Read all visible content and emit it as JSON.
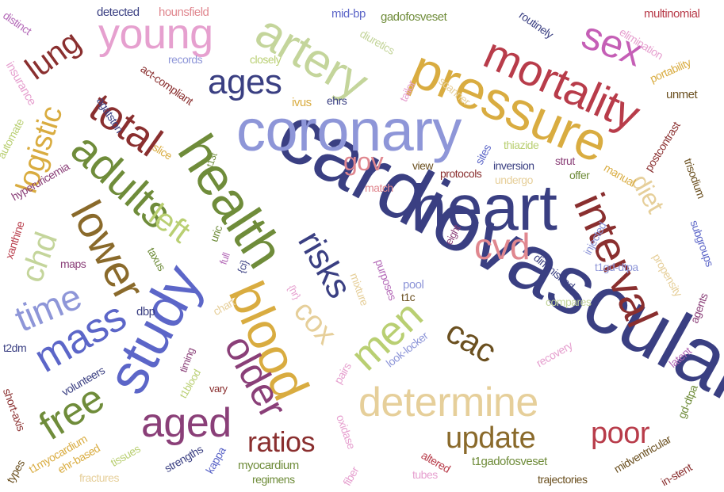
{
  "colors": {
    "navy": "#3a3f82",
    "periwinkle": "#8e96d8",
    "blue": "#5c66c8",
    "olive": "#6f8c3a",
    "lime": "#b9cf72",
    "sage": "#c4d59b",
    "gold": "#d9ac40",
    "sand": "#e6cf9a",
    "brown": "#8a6a2b",
    "darkbrown": "#6b5020",
    "maroon": "#8a2f2f",
    "crimson": "#b83c4a",
    "rose": "#e0878f",
    "pink": "#e6a0cf",
    "magenta": "#c55fb6",
    "plum": "#8a3f78",
    "orchid": "#b46ab8"
  },
  "words": [
    {
      "text": "cardiovascular",
      "color": "navy"
    },
    {
      "text": "coronary",
      "color": "periwinkle"
    },
    {
      "text": "heart",
      "color": "navy"
    },
    {
      "text": "pressure",
      "color": "gold"
    },
    {
      "text": "health",
      "color": "olive"
    },
    {
      "text": "study",
      "color": "blue"
    },
    {
      "text": "artery",
      "color": "sage"
    },
    {
      "text": "blood",
      "color": "gold"
    },
    {
      "text": "mortality",
      "color": "crimson"
    },
    {
      "text": "determine",
      "color": "sand"
    },
    {
      "text": "interval",
      "color": "maroon"
    },
    {
      "text": "total",
      "color": "maroon"
    },
    {
      "text": "young",
      "color": "pink"
    },
    {
      "text": "ages",
      "color": "navy"
    },
    {
      "text": "adults",
      "color": "olive"
    },
    {
      "text": "lower",
      "color": "brown"
    },
    {
      "text": "men",
      "color": "lime"
    },
    {
      "text": "mass",
      "color": "blue"
    },
    {
      "text": "time",
      "color": "periwinkle"
    },
    {
      "text": "older",
      "color": "plum"
    },
    {
      "text": "aged",
      "color": "plum"
    },
    {
      "text": "free",
      "color": "olive"
    },
    {
      "text": "update",
      "color": "brown"
    },
    {
      "text": "sex",
      "color": "magenta"
    },
    {
      "text": "cvd",
      "color": "rose"
    },
    {
      "text": "risks",
      "color": "navy"
    },
    {
      "text": "logistic",
      "color": "gold"
    },
    {
      "text": "lung",
      "color": "maroon"
    },
    {
      "text": "left",
      "color": "lime"
    },
    {
      "text": "chd",
      "color": "sage"
    },
    {
      "text": "cac",
      "color": "darkbrown"
    },
    {
      "text": "cox",
      "color": "sand"
    },
    {
      "text": "ratios",
      "color": "maroon"
    },
    {
      "text": "poor",
      "color": "crimson"
    },
    {
      "text": "diet",
      "color": "sand"
    },
    {
      "text": "gov",
      "color": "rose"
    },
    {
      "text": "detected",
      "color": "navy"
    },
    {
      "text": "hounsfield",
      "color": "rose"
    },
    {
      "text": "mid-bp",
      "color": "blue"
    },
    {
      "text": "gadofosveset",
      "color": "olive"
    },
    {
      "text": "distinct",
      "color": "orchid"
    },
    {
      "text": "routinely",
      "color": "navy"
    },
    {
      "text": "multinomial",
      "color": "crimson"
    },
    {
      "text": "elimination",
      "color": "pink"
    },
    {
      "text": "insurance",
      "color": "pink"
    },
    {
      "text": "records",
      "color": "periwinkle"
    },
    {
      "text": "closely",
      "color": "lime"
    },
    {
      "text": "diuretics",
      "color": "sage"
    },
    {
      "text": "portability",
      "color": "gold"
    },
    {
      "text": "act-compliant",
      "color": "maroon"
    },
    {
      "text": "ivus",
      "color": "gold"
    },
    {
      "text": "ehrs",
      "color": "navy"
    },
    {
      "text": "tailor",
      "color": "pink"
    },
    {
      "text": "scanner",
      "color": "sand"
    },
    {
      "text": "unmet",
      "color": "darkbrown"
    },
    {
      "text": "automate",
      "color": "lime"
    },
    {
      "text": "agatston",
      "color": "navy"
    },
    {
      "text": "postcontrast",
      "color": "maroon"
    },
    {
      "text": "slice",
      "color": "gold"
    },
    {
      "text": "t13t",
      "color": "olive"
    },
    {
      "text": "thiazide",
      "color": "lime"
    },
    {
      "text": "sites",
      "color": "blue"
    },
    {
      "text": "strut",
      "color": "plum"
    },
    {
      "text": "offer",
      "color": "olive"
    },
    {
      "text": "manual",
      "color": "gold"
    },
    {
      "text": "trisodium",
      "color": "darkbrown"
    },
    {
      "text": "hyperuricemia",
      "color": "plum"
    },
    {
      "text": "view",
      "color": "darkbrown"
    },
    {
      "text": "protocols",
      "color": "maroon"
    },
    {
      "text": "inversion",
      "color": "navy"
    },
    {
      "text": "match",
      "color": "rose"
    },
    {
      "text": "undergo",
      "color": "sand"
    },
    {
      "text": "xanthine",
      "color": "crimson"
    },
    {
      "text": "uric",
      "color": "olive"
    },
    {
      "text": "eight",
      "color": "plum"
    },
    {
      "text": "injected",
      "color": "periwinkle"
    },
    {
      "text": "subgroups",
      "color": "blue"
    },
    {
      "text": "maps",
      "color": "plum"
    },
    {
      "text": "taxus",
      "color": "olive"
    },
    {
      "text": "full",
      "color": "orchid"
    },
    {
      "text": "{ci}",
      "color": "navy"
    },
    {
      "text": "purposes",
      "color": "orchid"
    },
    {
      "text": "mixture",
      "color": "sand"
    },
    {
      "text": "t1gd-dtpa",
      "color": "periwinkle"
    },
    {
      "text": "propensity",
      "color": "sand"
    },
    {
      "text": "diminished",
      "color": "navy"
    },
    {
      "text": "{hr}",
      "color": "pink"
    },
    {
      "text": "pool",
      "color": "periwinkle"
    },
    {
      "text": "t1c",
      "color": "darkbrown"
    },
    {
      "text": "compares",
      "color": "sage"
    },
    {
      "text": "agents",
      "color": "plum"
    },
    {
      "text": "dbp",
      "color": "navy"
    },
    {
      "text": "chart",
      "color": "sand"
    },
    {
      "text": "t2dm",
      "color": "navy"
    },
    {
      "text": "timing",
      "color": "plum"
    },
    {
      "text": "look-locker",
      "color": "periwinkle"
    },
    {
      "text": "recovery",
      "color": "pink"
    },
    {
      "text": "latent",
      "color": "orchid"
    },
    {
      "text": "volunteers",
      "color": "navy"
    },
    {
      "text": "t1blood",
      "color": "lime"
    },
    {
      "text": "pairs",
      "color": "pink"
    },
    {
      "text": "vary",
      "color": "maroon"
    },
    {
      "text": "gd-dtpa",
      "color": "olive"
    },
    {
      "text": "short-axis",
      "color": "maroon"
    },
    {
      "text": "oxidase",
      "color": "pink"
    },
    {
      "text": "t1myocardium",
      "color": "gold"
    },
    {
      "text": "ehr-based",
      "color": "gold"
    },
    {
      "text": "tissues",
      "color": "lime"
    },
    {
      "text": "strengths",
      "color": "navy"
    },
    {
      "text": "kappa",
      "color": "blue"
    },
    {
      "text": "myocardium",
      "color": "olive"
    },
    {
      "text": "altered",
      "color": "crimson"
    },
    {
      "text": "t1gadofosveset",
      "color": "olive"
    },
    {
      "text": "midventricular",
      "color": "darkbrown"
    },
    {
      "text": "types",
      "color": "darkbrown"
    },
    {
      "text": "fractures",
      "color": "sand"
    },
    {
      "text": "regimens",
      "color": "olive"
    },
    {
      "text": "fiber",
      "color": "pink"
    },
    {
      "text": "tubes",
      "color": "pink"
    },
    {
      "text": "trajectories",
      "color": "darkbrown"
    },
    {
      "text": "in-stent",
      "color": "maroon"
    }
  ]
}
